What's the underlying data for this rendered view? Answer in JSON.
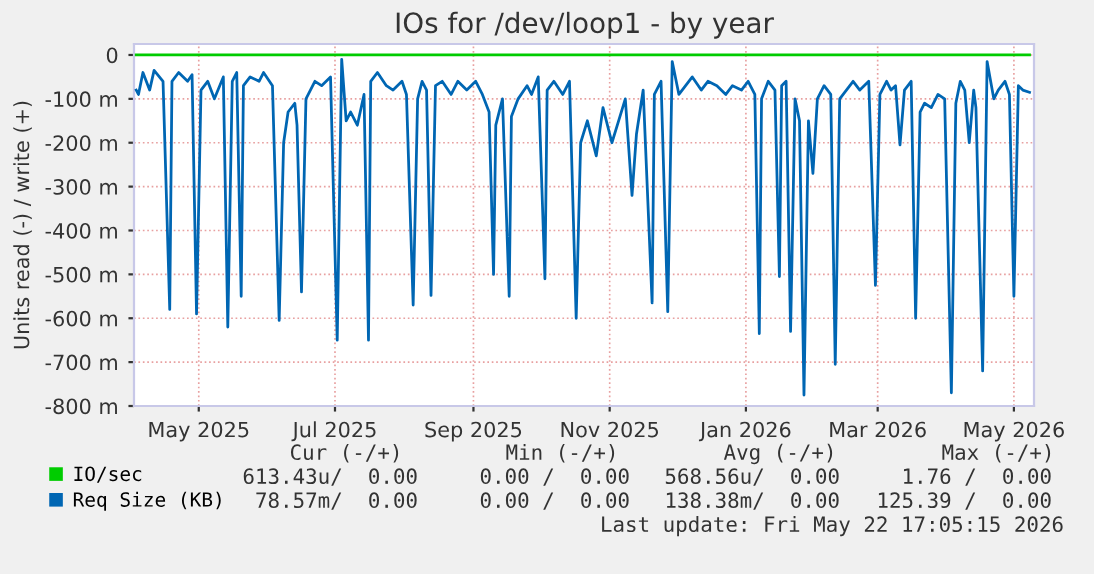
{
  "chart_data": {
    "type": "line",
    "title": "IOs for /dev/loop1 - by year",
    "ylabel": "Units read (-) / write (+)",
    "xlim": [
      "2025-04-02",
      "2026-05-10"
    ],
    "xticks": [
      {
        "value": "2025-05-01",
        "label": "May 2025"
      },
      {
        "value": "2025-07-01",
        "label": "Jul 2025"
      },
      {
        "value": "2025-09-01",
        "label": "Sep 2025"
      },
      {
        "value": "2025-11-01",
        "label": "Nov 2025"
      },
      {
        "value": "2026-01-01",
        "label": "Jan 2026"
      },
      {
        "value": "2026-03-01",
        "label": "Mar 2026"
      },
      {
        "value": "2026-05-01",
        "label": "May 2026"
      }
    ],
    "ylim": [
      -800,
      25
    ],
    "yticks": [
      {
        "value": -800,
        "label": "-800 m"
      },
      {
        "value": -700,
        "label": "-700 m"
      },
      {
        "value": -600,
        "label": "-600 m"
      },
      {
        "value": -500,
        "label": "-500 m"
      },
      {
        "value": -400,
        "label": "-400 m"
      },
      {
        "value": -300,
        "label": "-300 m"
      },
      {
        "value": -200,
        "label": "-200 m"
      },
      {
        "value": -100,
        "label": "-100 m"
      },
      0
    ],
    "grid": true,
    "legend": "bottom",
    "series": [
      {
        "name": "IO/sec",
        "color": "#00cc00",
        "x": [
          "2025-04-03",
          "2026-05-08"
        ],
        "values": [
          0,
          0
        ]
      },
      {
        "name": "Req Size (KB)",
        "color": "#0066b3",
        "x": [
          "2025-04-03",
          "2025-04-04",
          "2025-04-06",
          "2025-04-09",
          "2025-04-11",
          "2025-04-15",
          "2025-04-18",
          "2025-04-19",
          "2025-04-22",
          "2025-04-26",
          "2025-04-28",
          "2025-04-30",
          "2025-05-02",
          "2025-05-05",
          "2025-05-08",
          "2025-05-12",
          "2025-05-14",
          "2025-05-16",
          "2025-05-18",
          "2025-05-20",
          "2025-05-21",
          "2025-05-24",
          "2025-05-28",
          "2025-05-30",
          "2025-06-03",
          "2025-06-06",
          "2025-06-08",
          "2025-06-10",
          "2025-06-13",
          "2025-06-14",
          "2025-06-16",
          "2025-06-18",
          "2025-06-22",
          "2025-06-25",
          "2025-06-29",
          "2025-07-02",
          "2025-07-04",
          "2025-07-06",
          "2025-07-08",
          "2025-07-11",
          "2025-07-14",
          "2025-07-16",
          "2025-07-17",
          "2025-07-20",
          "2025-07-24",
          "2025-07-27",
          "2025-07-31",
          "2025-08-02",
          "2025-08-05",
          "2025-08-07",
          "2025-08-09",
          "2025-08-11",
          "2025-08-13",
          "2025-08-15",
          "2025-08-18",
          "2025-08-22",
          "2025-08-25",
          "2025-08-29",
          "2025-09-02",
          "2025-09-05",
          "2025-09-08",
          "2025-09-10",
          "2025-09-11",
          "2025-09-14",
          "2025-09-17",
          "2025-09-18",
          "2025-09-21",
          "2025-09-25",
          "2025-09-27",
          "2025-09-30",
          "2025-10-03",
          "2025-10-04",
          "2025-10-07",
          "2025-10-11",
          "2025-10-14",
          "2025-10-17",
          "2025-10-19",
          "2025-10-22",
          "2025-10-26",
          "2025-10-29",
          "2025-11-02",
          "2025-11-05",
          "2025-11-08",
          "2025-11-11",
          "2025-11-13",
          "2025-11-16",
          "2025-11-20",
          "2025-11-21",
          "2025-11-24",
          "2025-11-27",
          "2025-11-29",
          "2025-12-02",
          "2025-12-05",
          "2025-12-08",
          "2025-12-12",
          "2025-12-15",
          "2025-12-19",
          "2025-12-23",
          "2025-12-26",
          "2025-12-30",
          "2026-01-02",
          "2026-01-05",
          "2026-01-07",
          "2026-01-08",
          "2026-01-11",
          "2026-01-14",
          "2026-01-16",
          "2026-01-17",
          "2026-01-19",
          "2026-01-21",
          "2026-01-23",
          "2026-01-25",
          "2026-01-27",
          "2026-01-29",
          "2026-01-31",
          "2026-02-02",
          "2026-02-05",
          "2026-02-08",
          "2026-02-10",
          "2026-02-12",
          "2026-02-15",
          "2026-02-18",
          "2026-02-21",
          "2026-02-25",
          "2026-02-28",
          "2026-03-02",
          "2026-03-05",
          "2026-03-07",
          "2026-03-09",
          "2026-03-11",
          "2026-03-13",
          "2026-03-16",
          "2026-03-18",
          "2026-03-20",
          "2026-03-22",
          "2026-03-25",
          "2026-03-28",
          "2026-03-31",
          "2026-04-03",
          "2026-04-05",
          "2026-04-07",
          "2026-04-09",
          "2026-04-11",
          "2026-04-13",
          "2026-04-14",
          "2026-04-17",
          "2026-04-19",
          "2026-04-22",
          "2026-04-24",
          "2026-04-27",
          "2026-04-29",
          "2026-05-01",
          "2026-05-03",
          "2026-05-05",
          "2026-05-08"
        ],
        "values": [
          -80,
          -90,
          -40,
          -80,
          -35,
          -60,
          -580,
          -60,
          -40,
          -60,
          -45,
          -590,
          -80,
          -60,
          -100,
          -50,
          -620,
          -60,
          -40,
          -550,
          -70,
          -50,
          -60,
          -40,
          -70,
          -605,
          -200,
          -130,
          -110,
          -160,
          -540,
          -100,
          -60,
          -70,
          -50,
          -650,
          -10,
          -150,
          -130,
          -160,
          -90,
          -650,
          -60,
          -40,
          -70,
          -80,
          -60,
          -90,
          -570,
          -100,
          -60,
          -80,
          -548,
          -70,
          -60,
          -90,
          -60,
          -80,
          -60,
          -90,
          -130,
          -500,
          -160,
          -100,
          -550,
          -140,
          -100,
          -70,
          -90,
          -50,
          -510,
          -80,
          -60,
          -90,
          -60,
          -600,
          -200,
          -150,
          -230,
          -120,
          -200,
          -150,
          -100,
          -320,
          -180,
          -80,
          -565,
          -90,
          -60,
          -585,
          -15,
          -90,
          -70,
          -50,
          -80,
          -60,
          -70,
          -90,
          -70,
          -80,
          -60,
          -90,
          -635,
          -100,
          -60,
          -80,
          -505,
          -70,
          -60,
          -630,
          -100,
          -150,
          -775,
          -150,
          -270,
          -100,
          -70,
          -90,
          -705,
          -100,
          -80,
          -60,
          -80,
          -60,
          -525,
          -90,
          -60,
          -80,
          -70,
          -205,
          -80,
          -60,
          -600,
          -130,
          -110,
          -120,
          -90,
          -100,
          -770,
          -110,
          -60,
          -80,
          -200,
          -80,
          -120,
          -720,
          -15,
          -100,
          -80,
          -60,
          -90,
          -550,
          -70,
          -80,
          -85
        ]
      }
    ],
    "annotations": [
      "Cur (-/+)",
      "Min (-/+)",
      "Avg (-/+)",
      "Max (-/+)",
      "613.43u/  0.00",
      "0.00 /  0.00",
      "568.56u/  0.00",
      "1.76 /  0.00",
      "78.57m/  0.00",
      "0.00 /  0.00",
      "138.38m/  0.00",
      "125.39 /  0.00",
      "Last update: Fri May 22 17:05:15 2026"
    ]
  }
}
